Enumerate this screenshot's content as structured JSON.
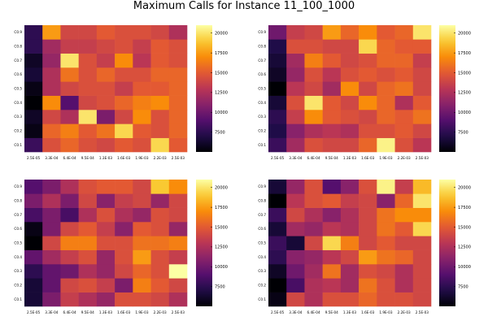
{
  "chart_data": {
    "type": "heatmap",
    "title": "Maximum Calls for Instance 11_100_1000",
    "x_tick_labels": [
      "2.5E-05",
      "3.3E-04",
      "6.4E-04",
      "9.5E-04",
      "1.3E-03",
      "1.6E-03",
      "1.9E-03",
      "2.2E-03",
      "2.5E-03"
    ],
    "y_tick_labels": [
      "C0.1",
      "C0.2",
      "C0.3",
      "C0.4",
      "C0.5",
      "C0.6",
      "C0.7",
      "C0.8",
      "C0.9"
    ],
    "colorbar_ticks": [
      7500,
      10000,
      12500,
      15000,
      17500,
      20000
    ],
    "colorbar_range": [
      5000,
      21000
    ],
    "colormap": "inferno",
    "panels": [
      {
        "values": [
          [
            8000,
            14500,
            15500,
            14500,
            14000,
            15000,
            14500,
            19500,
            15000
          ],
          [
            5500,
            15500,
            16500,
            15000,
            16000,
            19500,
            15000,
            14500,
            15500
          ],
          [
            6000,
            14000,
            12500,
            20000,
            10500,
            14000,
            17000,
            14500,
            15500
          ],
          [
            5000,
            17000,
            9000,
            14000,
            14500,
            15500,
            16500,
            17000,
            15500
          ],
          [
            5500,
            12500,
            14000,
            14500,
            14500,
            13500,
            15000,
            15000,
            15500
          ],
          [
            6500,
            12500,
            16000,
            14500,
            15500,
            14500,
            14500,
            15500,
            15500
          ],
          [
            6000,
            11500,
            20000,
            14500,
            13500,
            17000,
            13000,
            15000,
            14500
          ],
          [
            7500,
            12000,
            13500,
            13500,
            14000,
            14500,
            13500,
            15000,
            14500
          ],
          [
            7500,
            17500,
            14000,
            14000,
            15000,
            14500,
            14500,
            14000,
            12500
          ]
        ]
      },
      {
        "values": [
          [
            8000,
            12000,
            14500,
            14000,
            14000,
            15500,
            20500,
            14500,
            13000
          ],
          [
            7000,
            11000,
            12500,
            13000,
            12500,
            14500,
            14500,
            15000,
            14000
          ],
          [
            7500,
            13500,
            17000,
            15000,
            14500,
            14000,
            15500,
            15000,
            16000
          ],
          [
            6500,
            14500,
            20000,
            15000,
            14000,
            17000,
            15500,
            12500,
            15000
          ],
          [
            5000,
            13000,
            14000,
            12000,
            17000,
            14000,
            15500,
            16000,
            14000
          ],
          [
            6000,
            11500,
            14500,
            13000,
            14500,
            15000,
            14500,
            15000,
            14000
          ],
          [
            6500,
            12000,
            16500,
            15000,
            14000,
            14500,
            15500,
            15500,
            13500
          ],
          [
            7000,
            14500,
            14500,
            14000,
            14000,
            19500,
            15500,
            15000,
            15000
          ],
          [
            10000,
            13500,
            14000,
            17500,
            15500,
            17000,
            15000,
            15500,
            20000
          ]
        ]
      },
      {
        "values": [
          [
            6500,
            10500,
            13500,
            12500,
            11500,
            14500,
            14500,
            14000,
            12500
          ],
          [
            6500,
            9500,
            14000,
            14500,
            13500,
            10500,
            16500,
            15000,
            14000
          ],
          [
            7500,
            9500,
            10000,
            12500,
            11500,
            14000,
            15500,
            14500,
            21000
          ],
          [
            9500,
            12000,
            13500,
            14500,
            11500,
            14500,
            17500,
            14500,
            13500
          ],
          [
            5000,
            14000,
            16500,
            16500,
            14500,
            14500,
            16000,
            16000,
            16500
          ],
          [
            5500,
            10500,
            14000,
            15000,
            13500,
            11000,
            15000,
            14500,
            11500
          ],
          [
            8500,
            10500,
            8500,
            12500,
            14500,
            12500,
            11500,
            14500,
            14000
          ],
          [
            10500,
            12500,
            10500,
            14000,
            11000,
            13500,
            14000,
            11500,
            14000
          ],
          [
            9000,
            10500,
            12500,
            14500,
            15000,
            15000,
            14000,
            19000,
            17000
          ]
        ]
      },
      {
        "values": [
          [
            5500,
            14000,
            12500,
            14500,
            14500,
            15500,
            14500,
            14500,
            14000
          ],
          [
            5000,
            8500,
            12500,
            13000,
            12000,
            16000,
            14500,
            12500,
            14000
          ],
          [
            6000,
            10000,
            12000,
            16000,
            12000,
            14500,
            14000,
            12500,
            14000
          ],
          [
            7500,
            11000,
            11500,
            13000,
            14000,
            17500,
            16000,
            15500,
            14000
          ],
          [
            8000,
            6500,
            14000,
            19500,
            16500,
            14000,
            15000,
            14000,
            14000
          ],
          [
            6500,
            12000,
            11500,
            13000,
            12500,
            14000,
            16000,
            15000,
            19500
          ],
          [
            8000,
            14000,
            12500,
            11000,
            12500,
            14000,
            16000,
            17000,
            17000
          ],
          [
            5000,
            13000,
            14500,
            15000,
            13500,
            14000,
            11000,
            15500,
            20000
          ],
          [
            6500,
            11500,
            14500,
            9000,
            11000,
            14500,
            20500,
            13500,
            18500
          ]
        ]
      }
    ]
  }
}
